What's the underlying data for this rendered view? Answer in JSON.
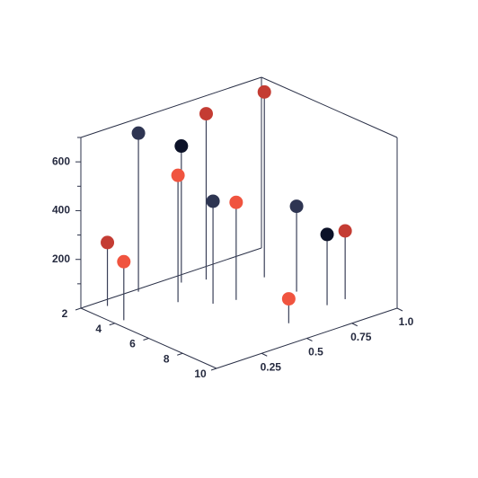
{
  "chart_data": {
    "type": "scatter",
    "subtype": "3d-stem",
    "title": "",
    "xlabel": "",
    "ylabel": "",
    "zlabel": "",
    "grid": false,
    "xlim": [
      2,
      10
    ],
    "ylim": [
      0,
      1
    ],
    "zlim": [
      0,
      700
    ],
    "x_ticks": [
      "2",
      "4",
      "6",
      "8",
      "10"
    ],
    "y_ticks": [
      "0.25",
      "0.5",
      "0.75",
      "1.0"
    ],
    "z_ticks": [
      "200",
      "400",
      "600"
    ],
    "colors": {
      "axis": "#2b3148",
      "orange_red": "#f0543f",
      "brick_red": "#c43c33",
      "slate": "#2e3552",
      "navy": "#0c1228"
    },
    "points": [
      {
        "x": 4.0,
        "y": 0.05,
        "z": 240,
        "color": "#f0543f"
      },
      {
        "x": 2.5,
        "y": 0.1,
        "z": 260,
        "color": "#c43c33"
      },
      {
        "x": 2.2,
        "y": 0.3,
        "z": 650,
        "color": "#2e3552"
      },
      {
        "x": 4.0,
        "y": 0.35,
        "z": 520,
        "color": "#f0543f"
      },
      {
        "x": 2.6,
        "y": 0.5,
        "z": 560,
        "color": "#0c1228"
      },
      {
        "x": 5.0,
        "y": 0.45,
        "z": 420,
        "color": "#2e3552"
      },
      {
        "x": 3.0,
        "y": 0.6,
        "z": 680,
        "color": "#c43c33"
      },
      {
        "x": 5.3,
        "y": 0.55,
        "z": 400,
        "color": "#f0543f"
      },
      {
        "x": 8.4,
        "y": 0.55,
        "z": 100,
        "color": "#f0543f"
      },
      {
        "x": 4.3,
        "y": 0.8,
        "z": 760,
        "color": "#c43c33"
      },
      {
        "x": 6.2,
        "y": 0.8,
        "z": 350,
        "color": "#2e3552"
      },
      {
        "x": 8.0,
        "y": 0.8,
        "z": 290,
        "color": "#0c1228"
      },
      {
        "x": 8.0,
        "y": 0.9,
        "z": 280,
        "color": "#c43c33"
      }
    ]
  }
}
